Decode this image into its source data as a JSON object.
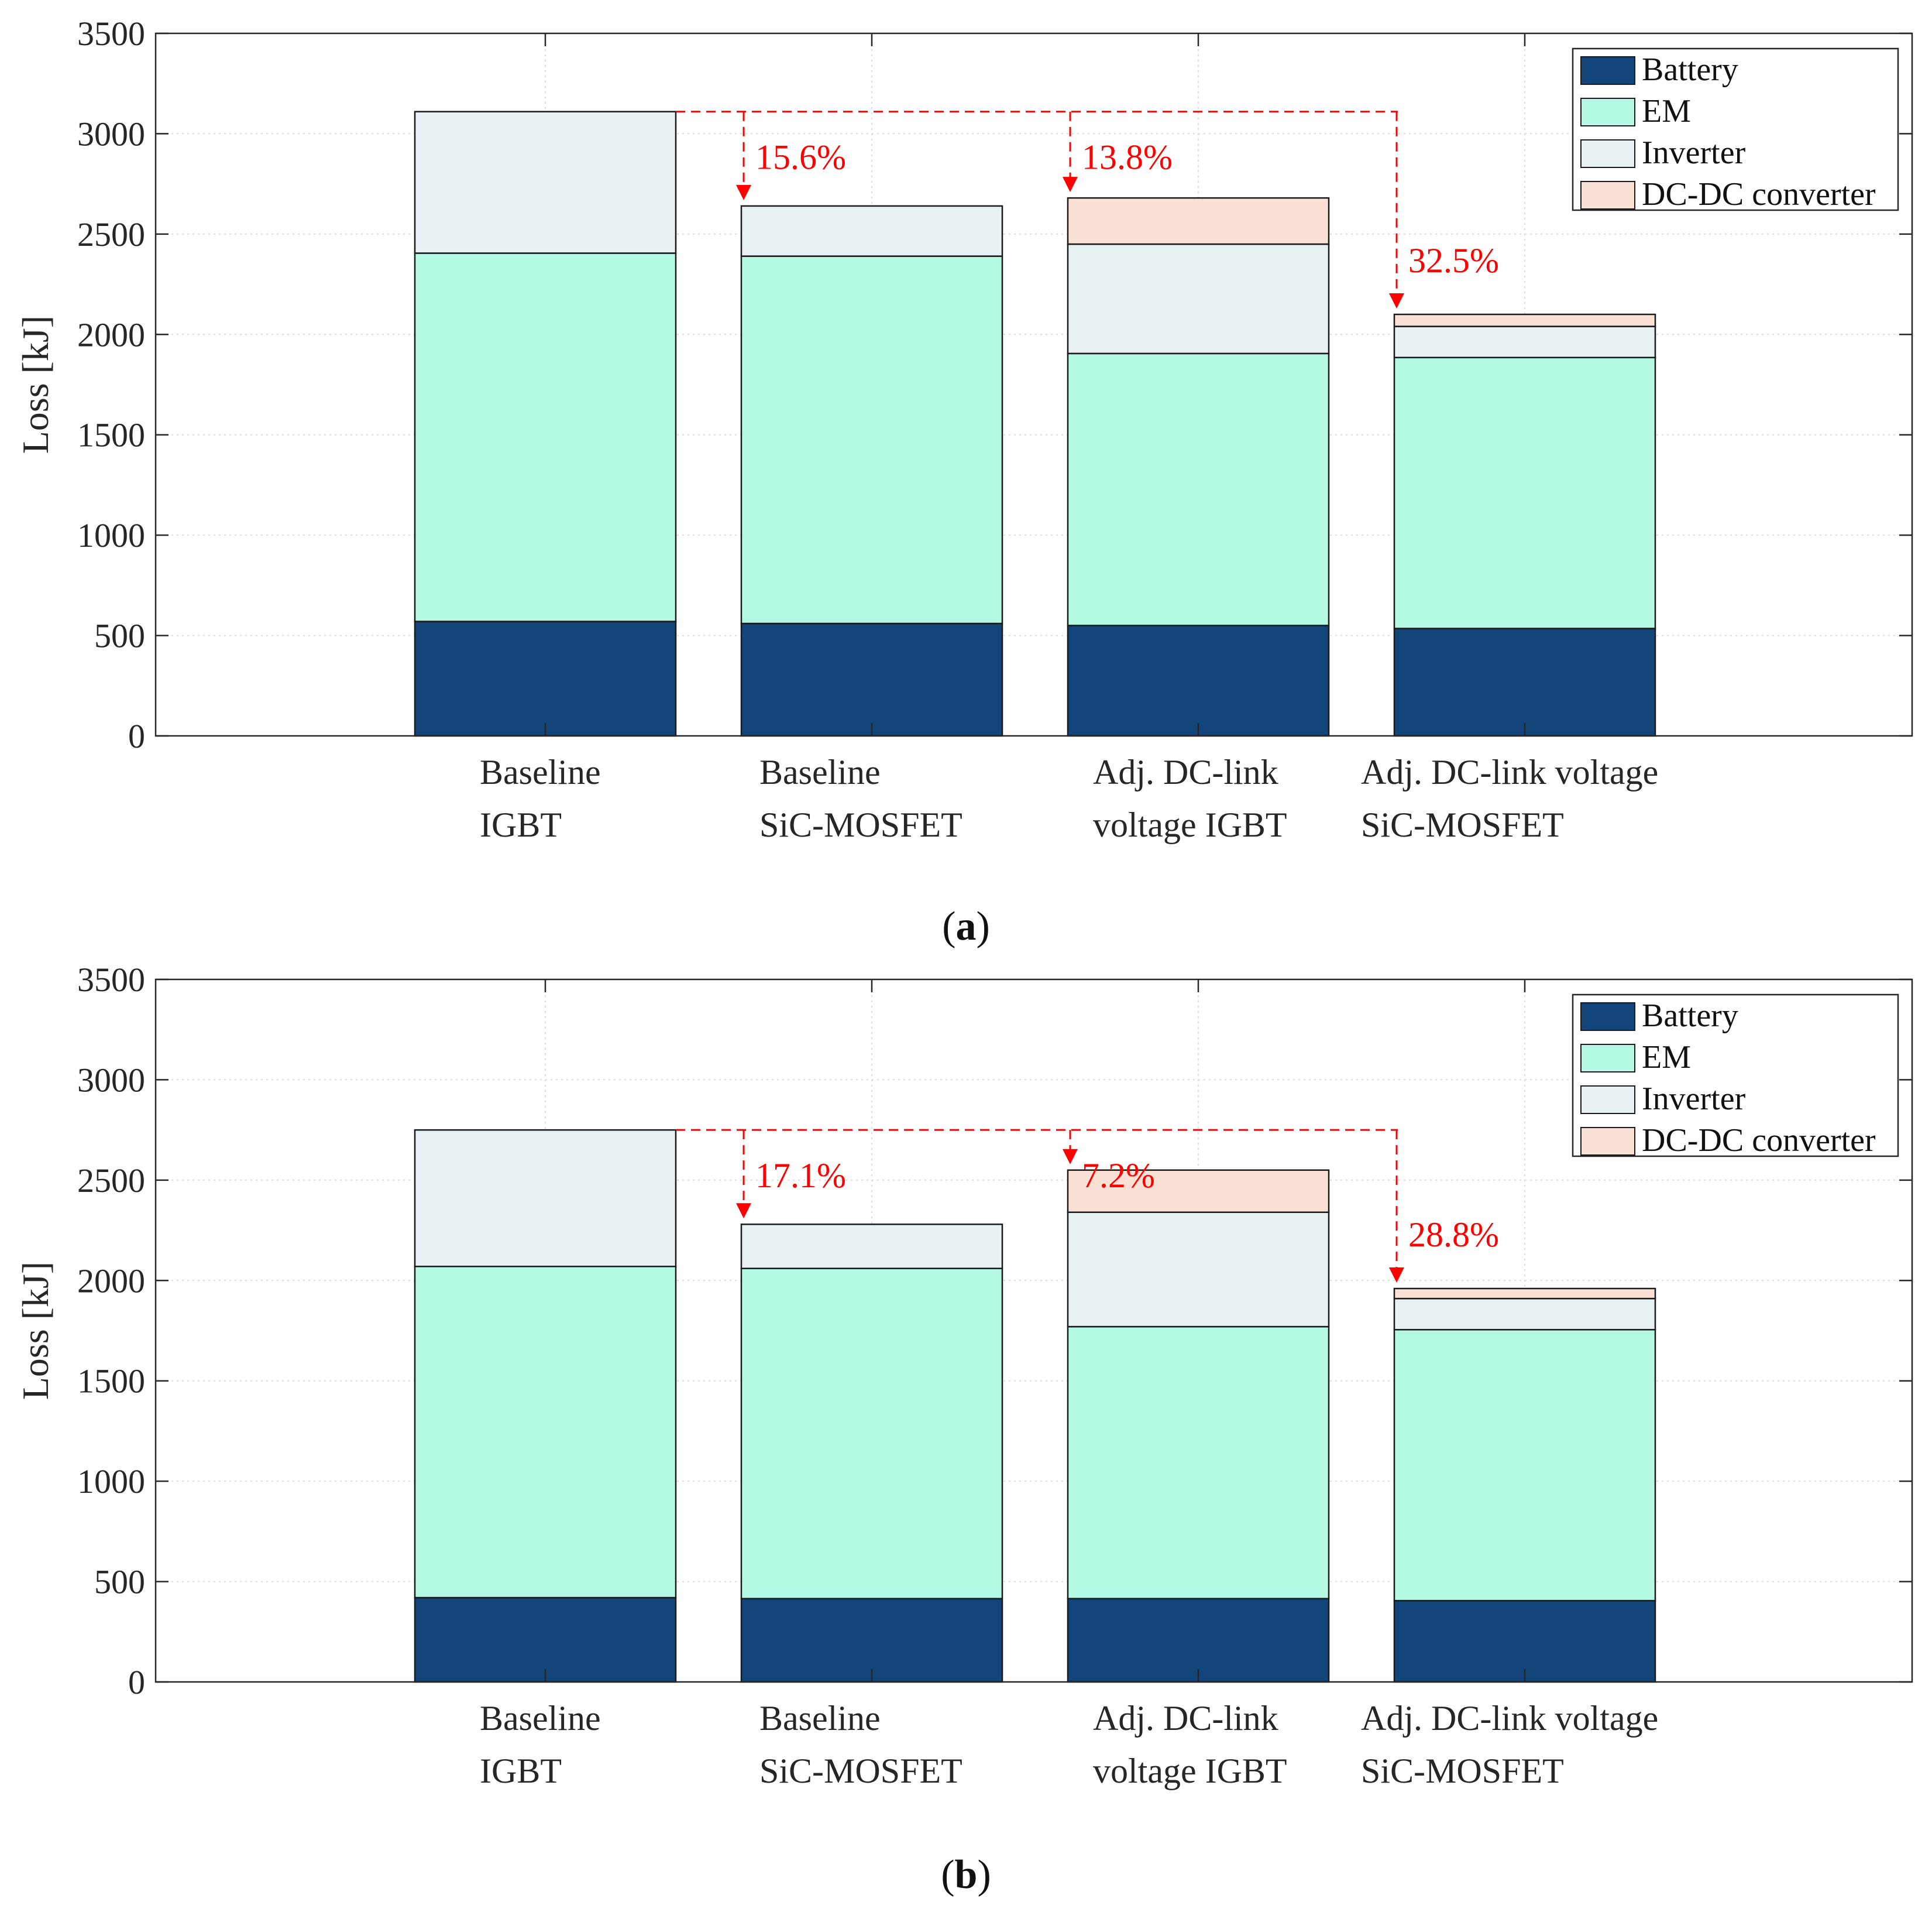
{
  "figure": {
    "ylabel": "Loss [kJ]",
    "legend_location": "top-right"
  },
  "chart_data": [
    {
      "type": "bar",
      "stacked": true,
      "panel_label": {
        "open": "(",
        "letter": "a",
        "close": ")"
      },
      "title": "",
      "xlabel": "",
      "ylabel": "Loss [kJ]",
      "ylim": [
        0,
        3500
      ],
      "yticks": [
        "0",
        "500",
        "1000",
        "1500",
        "2000",
        "2500",
        "3000",
        "3500"
      ],
      "grid": true,
      "categories": [
        {
          "line1": "Baseline",
          "line2": "IGBT"
        },
        {
          "line1": "Baseline",
          "line2": "SiC-MOSFET"
        },
        {
          "line1": "Adj. DC-link",
          "line2": "voltage IGBT"
        },
        {
          "line1": "Adj. DC-link voltage",
          "line2": "SiC-MOSFET"
        }
      ],
      "series": [
        {
          "name": "Battery",
          "color": "#124579",
          "values": [
            570,
            560,
            550,
            535
          ]
        },
        {
          "name": "EM",
          "color": "#b3f9e4",
          "values": [
            1835,
            1830,
            1355,
            1350
          ]
        },
        {
          "name": "Inverter",
          "color": "#e7f0f2",
          "values": [
            705,
            250,
            545,
            155
          ]
        },
        {
          "name": "DC-DC converter",
          "color": "#fbe1d5",
          "values": [
            0,
            0,
            230,
            60
          ]
        }
      ],
      "annotations": [
        {
          "text": "15.6%",
          "to_bar": 1
        },
        {
          "text": "13.8%",
          "to_bar": 2
        },
        {
          "text": "32.5%",
          "to_bar": 3
        }
      ],
      "annotation_color": "#ff0000"
    },
    {
      "type": "bar",
      "stacked": true,
      "panel_label": {
        "open": "(",
        "letter": "b",
        "close": ")"
      },
      "title": "",
      "xlabel": "",
      "ylabel": "Loss [kJ]",
      "ylim": [
        0,
        3500
      ],
      "yticks": [
        "0",
        "500",
        "1000",
        "1500",
        "2000",
        "2500",
        "3000",
        "3500"
      ],
      "grid": true,
      "categories": [
        {
          "line1": "Baseline",
          "line2": "IGBT"
        },
        {
          "line1": "Baseline",
          "line2": "SiC-MOSFET"
        },
        {
          "line1": "Adj. DC-link",
          "line2": "voltage IGBT"
        },
        {
          "line1": "Adj. DC-link voltage",
          "line2": "SiC-MOSFET"
        }
      ],
      "series": [
        {
          "name": "Battery",
          "color": "#124579",
          "values": [
            420,
            415,
            415,
            405
          ]
        },
        {
          "name": "EM",
          "color": "#b3f9e4",
          "values": [
            1650,
            1645,
            1355,
            1350
          ]
        },
        {
          "name": "Inverter",
          "color": "#e7f0f2",
          "values": [
            680,
            220,
            570,
            155
          ]
        },
        {
          "name": "DC-DC converter",
          "color": "#fbe1d5",
          "values": [
            0,
            0,
            210,
            50
          ]
        }
      ],
      "annotations": [
        {
          "text": "17.1%",
          "to_bar": 1
        },
        {
          "text": "7.2%",
          "to_bar": 2
        },
        {
          "text": "28.8%",
          "to_bar": 3
        }
      ],
      "annotation_color": "#ff0000"
    }
  ]
}
